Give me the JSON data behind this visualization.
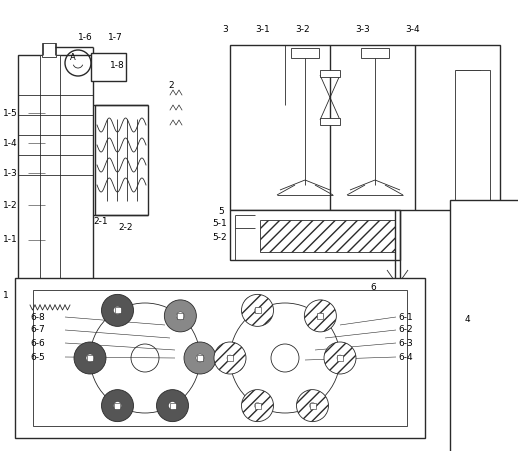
{
  "bg_color": "#ffffff",
  "line_color": "#2a2a2a",
  "lw": 1.0,
  "tlw": 0.6
}
